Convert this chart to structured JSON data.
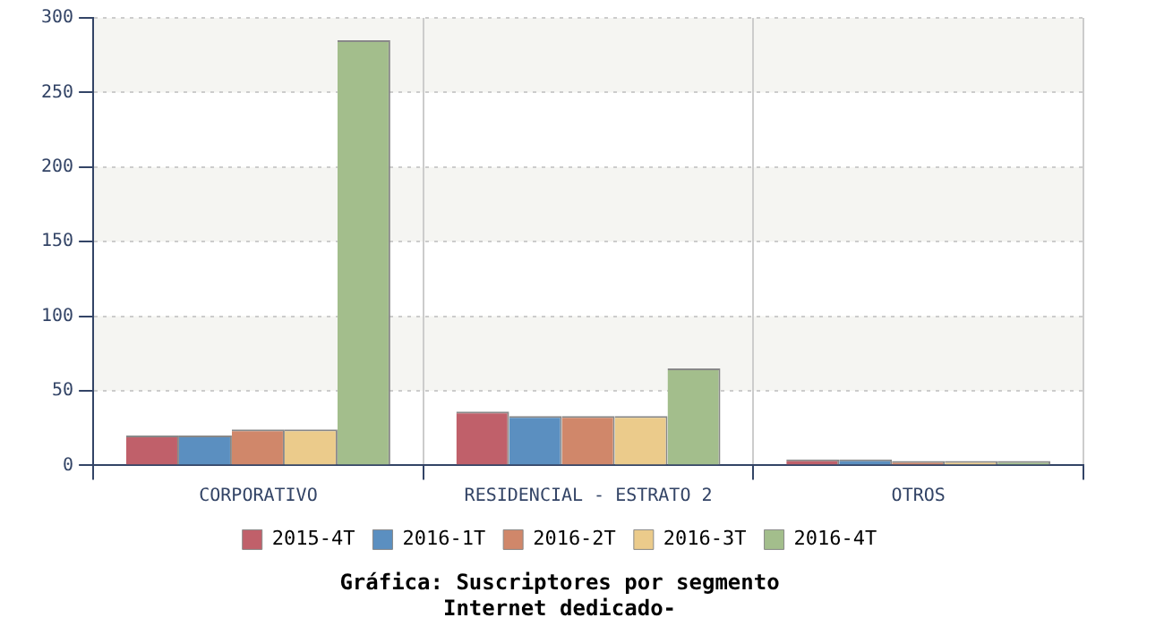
{
  "chart_data": {
    "type": "bar",
    "title": "Gráfica: Suscriptores por segmento\nInternet dedicado-",
    "categories": [
      "CORPORATIVO",
      "RESIDENCIAL - ESTRATO 2",
      "OTROS"
    ],
    "series": [
      {
        "name": "2015-4T",
        "color": "#c0606a",
        "values": [
          20,
          36,
          4
        ]
      },
      {
        "name": "2016-1T",
        "color": "#5b8fc0",
        "values": [
          20,
          33,
          4
        ]
      },
      {
        "name": "2016-2T",
        "color": "#d0876a",
        "values": [
          24,
          33,
          3
        ]
      },
      {
        "name": "2016-3T",
        "color": "#ebcb8b",
        "values": [
          24,
          33,
          3
        ]
      },
      {
        "name": "2016-4T",
        "color": "#a3be8c",
        "values": [
          285,
          65,
          3
        ]
      }
    ],
    "ylim": [
      0,
      300
    ],
    "yticks": [
      0,
      50,
      100,
      150,
      200,
      250,
      300
    ],
    "grid": true,
    "legend": "bottom"
  }
}
